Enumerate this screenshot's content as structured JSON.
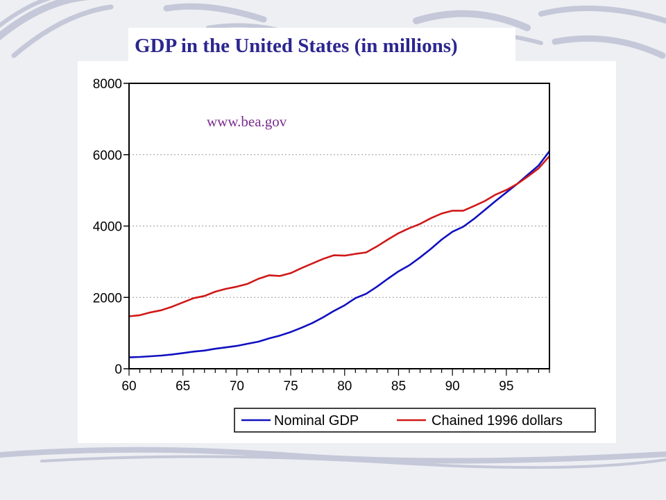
{
  "slide": {
    "title": "GDP in the United States (in millions)"
  },
  "colors": {
    "title": "#2c2690",
    "nominal": "#1010c0",
    "chained": "#d01818",
    "annotation": "#7a2b8e"
  },
  "chart_data": {
    "type": "line",
    "title": "",
    "xlabel": "",
    "ylabel": "",
    "xlim": [
      60,
      99
    ],
    "ylim": [
      0,
      8000
    ],
    "x_ticks": [
      "60",
      "65",
      "70",
      "75",
      "80",
      "85",
      "90",
      "95"
    ],
    "y_ticks": [
      "0",
      "2000",
      "4000",
      "6000",
      "8000"
    ],
    "grid": "horizontal dotted",
    "legend_position": "bottom",
    "annotation": "www.bea.gov",
    "x": [
      60,
      61,
      62,
      63,
      64,
      65,
      66,
      67,
      68,
      69,
      70,
      71,
      72,
      73,
      74,
      75,
      76,
      77,
      78,
      79,
      80,
      81,
      82,
      83,
      84,
      85,
      86,
      87,
      88,
      89,
      90,
      91,
      92,
      93,
      94,
      95,
      96,
      97,
      98,
      99
    ],
    "series": [
      {
        "name": "Nominal GDP",
        "values": [
          320,
          330,
          350,
          370,
          400,
          440,
          480,
          510,
          560,
          600,
          640,
          700,
          760,
          850,
          930,
          1030,
          1150,
          1280,
          1440,
          1620,
          1780,
          1980,
          2100,
          2300,
          2520,
          2730,
          2900,
          3120,
          3360,
          3620,
          3840,
          3980,
          4200,
          4450,
          4700,
          4940,
          5180,
          5440,
          5700,
          6100
        ]
      },
      {
        "name": "Chained 1996 dollars",
        "values": [
          1470,
          1500,
          1580,
          1640,
          1740,
          1860,
          1980,
          2040,
          2160,
          2240,
          2300,
          2380,
          2520,
          2620,
          2600,
          2680,
          2820,
          2950,
          3080,
          3180,
          3170,
          3220,
          3260,
          3430,
          3620,
          3800,
          3940,
          4060,
          4220,
          4350,
          4430,
          4430,
          4560,
          4700,
          4880,
          5010,
          5180,
          5390,
          5620,
          5960
        ]
      }
    ]
  }
}
